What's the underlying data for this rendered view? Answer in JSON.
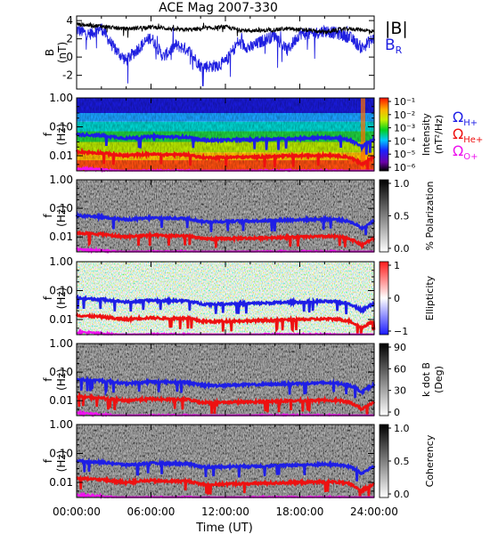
{
  "title": "ACE Mag 2007-330",
  "xlabel": "Time (UT)",
  "x_ticks": [
    "00:00:00",
    "06:00:00",
    "12:00:00",
    "18:00:00",
    "24:00:00"
  ],
  "colors": {
    "B_total": "#000000",
    "B_R": "#1f1fe0",
    "H": "#1e1ee6",
    "He": "#ee1111",
    "O": "#ee11ee"
  },
  "legend_top": {
    "b_total": "|B|",
    "br_base": "B",
    "br_sub": "R"
  },
  "legend_gyro": [
    {
      "base": "Ω",
      "sub": "H+",
      "color": "#1e1ee6"
    },
    {
      "base": "Ω",
      "sub": "He+",
      "color": "#ee1111"
    },
    {
      "base": "Ω",
      "sub": "O+",
      "color": "#ee11ee"
    }
  ],
  "freq_axis": {
    "label": "f",
    "unit": "(Hz)",
    "ticks": [
      "1.00",
      "0.10",
      "0.01"
    ]
  },
  "colorbars": [
    {
      "label_line1": "Intensity",
      "label_line2": "(nT²/Hz)",
      "ticks": [
        "10⁻¹",
        "10⁻²",
        "10⁻³",
        "10⁻⁴",
        "10⁻⁵",
        "10⁻⁶"
      ]
    },
    {
      "label_line1": "% Polarization",
      "label_line2": "",
      "ticks": [
        "1.0",
        "0.5",
        "0.0"
      ]
    },
    {
      "label_line1": "Ellipticity",
      "label_line2": "",
      "ticks": [
        "1",
        "0",
        "−1"
      ]
    },
    {
      "label_line1": "k dot B",
      "label_line2": "(Deg)",
      "ticks": [
        "90",
        "60",
        "30",
        "0"
      ]
    },
    {
      "label_line1": "Coherency",
      "label_line2": "",
      "ticks": [
        "1.0",
        "0.5",
        "0.0"
      ]
    }
  ],
  "chart_data": [
    {
      "type": "line",
      "title": "ACE Mag 2007-330",
      "ylabel": "B (nT)",
      "y_ticks": [
        4,
        2,
        0,
        -2
      ],
      "ylim": [
        -3.5,
        4.5
      ],
      "x": [
        0,
        1,
        2,
        3,
        4,
        5,
        6,
        7,
        8,
        9,
        10,
        11,
        12,
        13,
        14,
        15,
        16,
        17,
        18,
        19,
        20,
        21,
        22,
        23,
        24
      ],
      "series": [
        {
          "name": "|B|",
          "values": [
            3.6,
            3.5,
            3.4,
            3.2,
            3.1,
            3.2,
            3.3,
            3.2,
            3.0,
            3.0,
            3.1,
            3.2,
            3.3,
            3.0,
            2.9,
            2.9,
            3.0,
            3.1,
            3.0,
            2.9,
            2.7,
            3.0,
            3.1,
            3.0,
            2.8
          ]
        },
        {
          "name": "B_R",
          "values": [
            3.0,
            2.5,
            3.2,
            1.0,
            -0.4,
            1.0,
            2.2,
            0.0,
            1.3,
            0.8,
            -1.0,
            -1.0,
            -0.6,
            1.6,
            1.0,
            1.8,
            2.4,
            0.7,
            2.6,
            2.5,
            2.9,
            2.6,
            2.2,
            1.0,
            2.1
          ]
        }
      ]
    },
    {
      "type": "heatmap",
      "quantity": "Intensity",
      "ylabel": "f (Hz)",
      "y_scale": "log",
      "ylim": [
        0.003,
        1.0
      ],
      "x": [
        0,
        1,
        2,
        3,
        4,
        5,
        6,
        7,
        8,
        9,
        10,
        11,
        12,
        13,
        14,
        15,
        16,
        17,
        18,
        19,
        20,
        21,
        22,
        23,
        24
      ],
      "overlays": [
        {
          "name": "Ω_H+",
          "values": [
            0.055,
            0.052,
            0.05,
            0.045,
            0.04,
            0.043,
            0.046,
            0.045,
            0.045,
            0.044,
            0.035,
            0.034,
            0.035,
            0.036,
            0.036,
            0.037,
            0.038,
            0.039,
            0.04,
            0.041,
            0.042,
            0.041,
            0.035,
            0.02,
            0.036
          ]
        },
        {
          "name": "Ω_He+",
          "values": [
            0.014,
            0.013,
            0.0125,
            0.011,
            0.01,
            0.011,
            0.0115,
            0.011,
            0.011,
            0.011,
            0.0088,
            0.0085,
            0.0088,
            0.009,
            0.009,
            0.0093,
            0.0095,
            0.0098,
            0.01,
            0.0102,
            0.0105,
            0.0102,
            0.0088,
            0.005,
            0.009
          ]
        },
        {
          "name": "Ω_O+",
          "values": [
            0.0037,
            0.0035,
            0.0033,
            0.003,
            0.0028,
            0.0029,
            0.003,
            0.003,
            0.003,
            0.003,
            0.0028,
            0.0028,
            0.0028,
            0.0029,
            0.0029,
            0.003,
            0.003,
            0.003,
            0.003,
            0.003,
            0.003,
            0.003,
            0.0028,
            0.0028,
            0.0029
          ]
        }
      ]
    },
    {
      "type": "heatmap",
      "quantity": "% Polarization",
      "ylabel": "f (Hz)",
      "y_scale": "log",
      "ylim": [
        0.003,
        1.0
      ]
    },
    {
      "type": "heatmap",
      "quantity": "Ellipticity",
      "ylabel": "f (Hz)",
      "y_scale": "log",
      "ylim": [
        0.003,
        1.0
      ]
    },
    {
      "type": "heatmap",
      "quantity": "k dot B",
      "ylabel": "f (Hz)",
      "y_scale": "log",
      "ylim": [
        0.003,
        1.0
      ]
    },
    {
      "type": "heatmap",
      "quantity": "Coherency",
      "ylabel": "f (Hz)",
      "y_scale": "log",
      "ylim": [
        0.003,
        1.0
      ]
    }
  ]
}
